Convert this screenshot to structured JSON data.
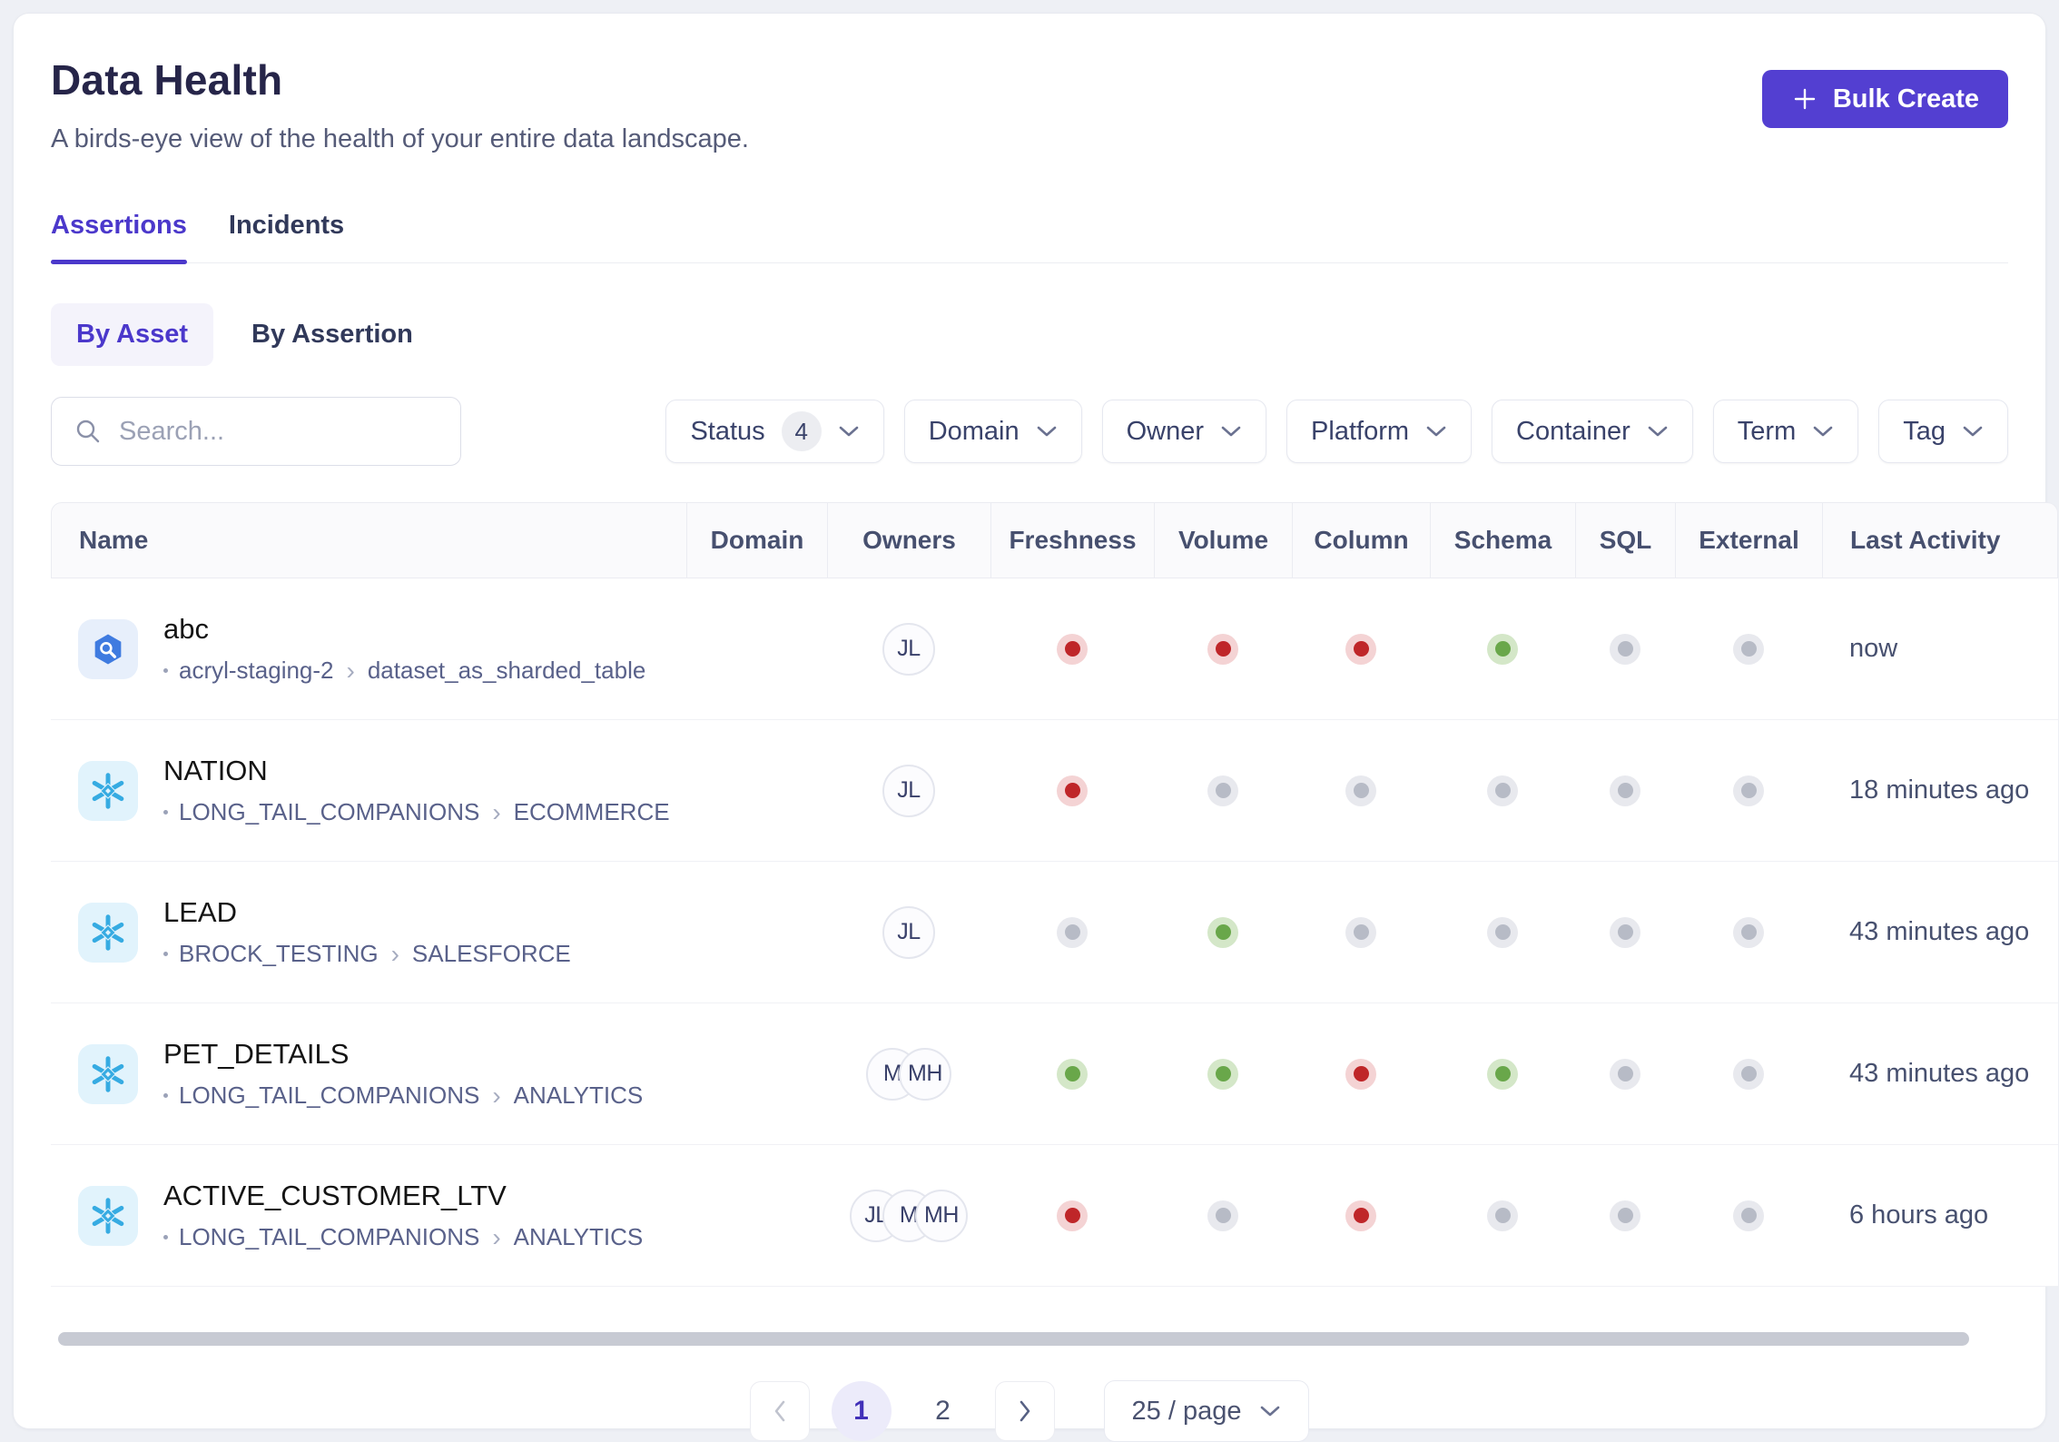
{
  "page": {
    "title": "Data Health",
    "subtitle": "A birds-eye view of the health of your entire data landscape.",
    "bulk_create_label": "Bulk Create"
  },
  "tabs": [
    {
      "label": "Assertions",
      "active": true
    },
    {
      "label": "Incidents",
      "active": false
    }
  ],
  "view_toggle": [
    {
      "label": "By Asset",
      "active": true
    },
    {
      "label": "By Assertion",
      "active": false
    }
  ],
  "search": {
    "placeholder": "Search..."
  },
  "filters": [
    {
      "label": "Status",
      "count": "4"
    },
    {
      "label": "Domain"
    },
    {
      "label": "Owner"
    },
    {
      "label": "Platform"
    },
    {
      "label": "Container"
    },
    {
      "label": "Term"
    },
    {
      "label": "Tag"
    }
  ],
  "table": {
    "columns": [
      "Name",
      "Domain",
      "Owners",
      "Freshness",
      "Volume",
      "Column",
      "Schema",
      "SQL",
      "External",
      "Last Activity"
    ],
    "rows": [
      {
        "name": "abc",
        "platform": "bigquery",
        "path": [
          "acryl-staging-2",
          "dataset_as_sharded_table"
        ],
        "owners": [
          "JL"
        ],
        "statuses": [
          "fail",
          "fail",
          "fail",
          "pass",
          "none",
          "none"
        ],
        "last_activity": "now"
      },
      {
        "name": "NATION",
        "platform": "snowflake",
        "path": [
          "LONG_TAIL_COMPANIONS",
          "ECOMMERCE"
        ],
        "owners": [
          "JL"
        ],
        "statuses": [
          "fail",
          "none",
          "none",
          "none",
          "none",
          "none"
        ],
        "last_activity": "18 minutes ago"
      },
      {
        "name": "LEAD",
        "platform": "snowflake",
        "path": [
          "BROCK_TESTING",
          "SALESFORCE"
        ],
        "owners": [
          "JL"
        ],
        "statuses": [
          "none",
          "pass",
          "none",
          "none",
          "none",
          "none"
        ],
        "last_activity": "43 minutes ago"
      },
      {
        "name": "PET_DETAILS",
        "platform": "snowflake",
        "path": [
          "LONG_TAIL_COMPANIONS",
          "ANALYTICS"
        ],
        "owners": [
          "M",
          "MH"
        ],
        "statuses": [
          "pass",
          "pass",
          "fail",
          "pass",
          "none",
          "none"
        ],
        "last_activity": "43 minutes ago"
      },
      {
        "name": "ACTIVE_CUSTOMER_LTV",
        "platform": "snowflake",
        "path": [
          "LONG_TAIL_COMPANIONS",
          "ANALYTICS"
        ],
        "owners": [
          "JL",
          "M",
          "MH"
        ],
        "statuses": [
          "fail",
          "none",
          "fail",
          "none",
          "none",
          "none"
        ],
        "last_activity": "6 hours ago"
      }
    ]
  },
  "pagination": {
    "pages": [
      "1",
      "2"
    ],
    "current": "1",
    "page_size": "25 / page"
  },
  "icons": {
    "bulk_create": "plus-icon",
    "search": "search-icon",
    "filter": "chevron-down-icon",
    "prev": "chevron-left-icon",
    "next": "chevron-right-icon",
    "platforms": {
      "bigquery": "bigquery-icon",
      "snowflake": "snowflake-icon"
    }
  },
  "colors": {
    "accent": "#533FD1",
    "pass": "#69A74A",
    "fail": "#BF2629",
    "inactive": "#B7BBC6",
    "snowflake_blue": "#36ABE2",
    "bigquery_blue": "#3F7BE0"
  }
}
